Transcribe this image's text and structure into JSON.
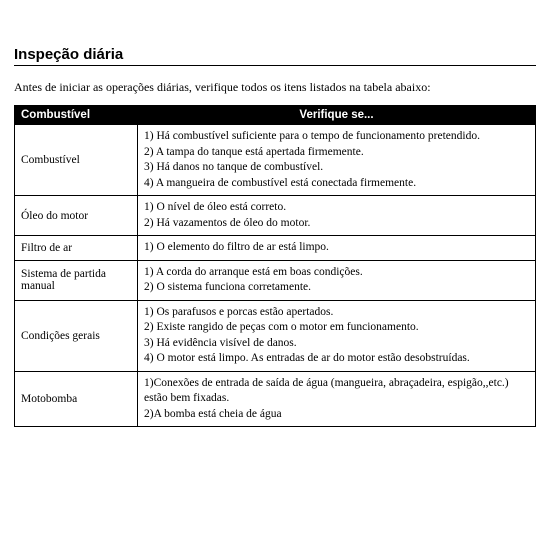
{
  "title": "Inspeção diária",
  "intro": "Antes de iniciar as operações diárias, verifique todos os itens listados na tabela abaixo:",
  "header": {
    "col1": "Combustível",
    "col2": "Verifique se..."
  },
  "rows": [
    {
      "label": "Combustível",
      "items": [
        "1)  Há combustível suficiente para o tempo de funcionamento pretendido.",
        "2)  A tampa do tanque está apertada firmemente.",
        "3)  Há danos no tanque de combustível.",
        "4)  A mangueira de combustível está conectada firmemente."
      ]
    },
    {
      "label": "Óleo do motor",
      "items": [
        "1)  O nível de óleo está correto.",
        "2)  Há vazamentos de óleo do motor."
      ]
    },
    {
      "label": "Filtro de ar",
      "items": [
        "1)  O elemento do filtro de ar está limpo."
      ]
    },
    {
      "label": "Sistema de partida manual",
      "items": [
        "1)  A corda do arranque está em boas condições.",
        "2)  O sistema funciona corretamente."
      ]
    },
    {
      "label": "Condições gerais",
      "items": [
        "1)  Os parafusos e porcas estão apertados.",
        "2)  Existe rangido de peças com o motor em funcionamento.",
        "3)  Há evidência visível de danos.",
        "4)  O motor está limpo. As entradas de ar do motor estão desobstruídas."
      ]
    },
    {
      "label": "Motobomba",
      "items": [
        "1)Conexões de entrada de saída de água (mangueira, abraçadeira, espigão,,etc.) estão bem fixadas.",
        "2)A bomba está cheia de água"
      ]
    }
  ]
}
